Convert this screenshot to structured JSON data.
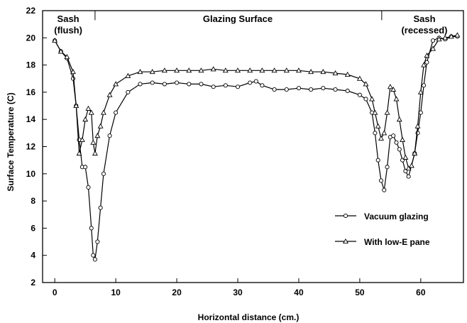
{
  "chart_data": {
    "type": "line",
    "xlabel": "Horizontal distance (cm.)",
    "ylabel": "Surface Temperature (C)",
    "xlim": [
      -2,
      67
    ],
    "ylim": [
      2,
      22
    ],
    "xticks": [
      0,
      10,
      20,
      30,
      40,
      50,
      60
    ],
    "yticks": [
      2,
      4,
      6,
      8,
      10,
      12,
      14,
      16,
      18,
      20,
      22
    ],
    "grid": false,
    "legend_position": "right",
    "region_labels": [
      {
        "lines": [
          "Sash",
          "(flush)"
        ],
        "x": 2.2
      },
      {
        "lines": [
          "Glazing Surface"
        ],
        "x": 30
      },
      {
        "lines": [
          "Sash",
          "(recessed)"
        ],
        "x": 60.6
      }
    ],
    "dividers": [
      6.6,
      53.6
    ],
    "series": [
      {
        "name": "Vacuum glazing",
        "marker": "circle",
        "x": [
          0,
          1,
          2,
          3,
          3.5,
          4,
          4.5,
          5,
          5.5,
          6,
          6.3,
          6.6,
          7,
          7.5,
          8,
          9,
          10,
          12,
          14,
          16,
          18,
          20,
          22,
          24,
          26,
          28,
          30,
          32,
          33,
          34,
          36,
          38,
          40,
          42,
          44,
          46,
          48,
          50,
          51,
          52,
          52.5,
          53,
          53.5,
          54,
          54.5,
          55,
          55.5,
          56,
          56.5,
          57,
          57.5,
          58,
          59,
          59.5,
          60,
          60.5,
          61,
          62,
          63,
          64,
          65,
          66
        ],
        "y": [
          19.8,
          19.0,
          18.5,
          17.0,
          15.0,
          12.5,
          10.5,
          10.5,
          9.0,
          6.0,
          4.0,
          3.7,
          5.0,
          7.5,
          10.0,
          12.8,
          14.5,
          16.0,
          16.6,
          16.7,
          16.6,
          16.7,
          16.6,
          16.6,
          16.4,
          16.5,
          16.4,
          16.7,
          16.8,
          16.5,
          16.2,
          16.2,
          16.3,
          16.2,
          16.3,
          16.2,
          16.1,
          15.8,
          15.5,
          14.5,
          13.0,
          11.0,
          9.5,
          8.8,
          10.5,
          12.7,
          12.8,
          12.3,
          11.8,
          11.0,
          10.2,
          9.8,
          11.5,
          13.0,
          14.5,
          16.5,
          18.2,
          19.8,
          20.0,
          19.9,
          20.1,
          20.1
        ]
      },
      {
        "name": "With low-E pane",
        "marker": "triangle",
        "x": [
          0,
          1,
          2,
          3,
          3.5,
          4,
          4.5,
          5,
          5.5,
          6,
          6.3,
          6.6,
          7,
          7.5,
          8,
          9,
          10,
          12,
          14,
          16,
          18,
          20,
          22,
          24,
          26,
          28,
          30,
          32,
          34,
          36,
          38,
          40,
          42,
          44,
          46,
          48,
          50,
          51,
          52,
          52.5,
          53,
          53.5,
          54,
          54.5,
          55,
          55.5,
          56,
          56.5,
          57,
          57.5,
          58,
          58.5,
          59,
          59.5,
          60,
          60.5,
          61,
          62,
          63,
          64,
          65,
          66
        ],
        "y": [
          19.8,
          19.0,
          18.6,
          17.5,
          15.0,
          11.5,
          12.5,
          14.0,
          14.8,
          14.5,
          12.3,
          11.5,
          12.8,
          13.5,
          14.5,
          15.8,
          16.6,
          17.2,
          17.5,
          17.5,
          17.6,
          17.6,
          17.6,
          17.6,
          17.7,
          17.6,
          17.6,
          17.6,
          17.6,
          17.6,
          17.6,
          17.6,
          17.5,
          17.5,
          17.4,
          17.3,
          17.0,
          16.6,
          15.5,
          14.5,
          13.5,
          12.6,
          13.0,
          14.5,
          16.4,
          16.2,
          15.5,
          14.0,
          12.5,
          11.2,
          10.4,
          10.6,
          11.5,
          13.5,
          16.0,
          18.0,
          18.7,
          19.2,
          19.9,
          20.0,
          20.1,
          20.2
        ]
      }
    ]
  }
}
